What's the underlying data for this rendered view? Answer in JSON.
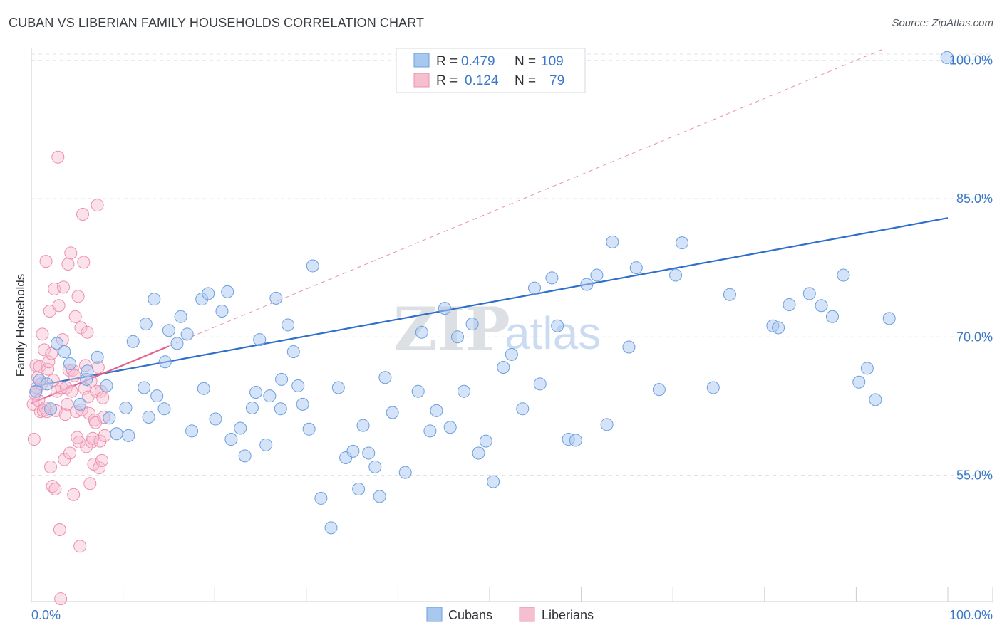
{
  "header": {
    "title": "CUBAN VS LIBERIAN FAMILY HOUSEHOLDS CORRELATION CHART",
    "source": "Source: ZipAtlas.com"
  },
  "watermark": {
    "part1": "ZIP",
    "part2": "atlas"
  },
  "stats": {
    "cubans": {
      "r_label": "R =",
      "r_value": "0.479",
      "n_label": "N =",
      "n_value": "109",
      "color": "#4a86d8"
    },
    "liberians": {
      "r_label": "R =",
      "r_value": "0.124",
      "n_label": "N =",
      "n_value": "79",
      "color": "#e8709a"
    }
  },
  "legend": {
    "cubans": "Cubans",
    "liberians": "Liberians"
  },
  "colors": {
    "cubans_fill": "#a9c8ef",
    "cubans_stroke": "#6a9fe0",
    "cubans_line": "#2f6fcc",
    "liberians_fill": "#f6bfd0",
    "liberians_stroke": "#ec8fae",
    "liberians_line": "#e0608e",
    "grid": "#dfe3e8",
    "tick_label": "#3a78c9"
  },
  "chart_data": {
    "type": "scatter",
    "title": "CUBAN VS LIBERIAN FAMILY HOUSEHOLDS CORRELATION CHART",
    "xlabel": "",
    "ylabel": "Family Households",
    "xlim": [
      0,
      100
    ],
    "ylim": [
      41.3,
      101.6
    ],
    "x_tick_labels": [
      "0.0%",
      "100.0%"
    ],
    "y_ticks": [
      55,
      70,
      85,
      100
    ],
    "y_tick_labels": [
      "55.0%",
      "70.0%",
      "85.0%",
      "100.0%"
    ],
    "grid": true,
    "legend_position": "bottom-center",
    "series": [
      {
        "name": "Cubans",
        "r": 0.479,
        "n": 109,
        "trend": {
          "x": [
            0,
            100
          ],
          "y": [
            64.6,
            82.9
          ]
        },
        "x": [
          0.5,
          0.9,
          1.7,
          2.1,
          2.8,
          3.6,
          4.2,
          5.3,
          6.0,
          6.1,
          7.2,
          8.2,
          8.5,
          9.3,
          10.3,
          10.6,
          11.1,
          12.3,
          12.5,
          12.8,
          13.4,
          13.7,
          14.5,
          14.6,
          15.0,
          15.9,
          16.3,
          17.0,
          17.5,
          18.6,
          18.8,
          19.3,
          20.1,
          20.8,
          21.4,
          21.8,
          22.8,
          23.3,
          24.1,
          24.5,
          24.9,
          25.6,
          26.0,
          26.7,
          27.2,
          27.3,
          28.0,
          28.6,
          29.1,
          29.6,
          30.3,
          30.7,
          31.6,
          32.7,
          33.5,
          34.3,
          35.1,
          35.7,
          36.2,
          36.8,
          37.5,
          38.0,
          38.6,
          39.4,
          40.8,
          42.2,
          42.6,
          43.5,
          44.2,
          45.1,
          45.7,
          46.5,
          47.2,
          48.1,
          48.8,
          49.6,
          50.4,
          51.5,
          52.4,
          53.6,
          54.9,
          55.5,
          56.8,
          57.4,
          58.6,
          59.4,
          60.6,
          61.7,
          62.8,
          63.4,
          65.2,
          66.0,
          68.5,
          70.3,
          71.0,
          74.4,
          76.2,
          80.9,
          81.5,
          82.7,
          84.9,
          86.2,
          87.4,
          88.6,
          90.3,
          91.2,
          92.1,
          93.6,
          99.9
        ],
        "y": [
          64.1,
          65.3,
          64.9,
          62.2,
          69.3,
          68.4,
          67.1,
          62.7,
          65.4,
          66.3,
          67.8,
          64.7,
          61.2,
          59.5,
          62.3,
          59.3,
          69.5,
          64.5,
          71.4,
          61.3,
          74.1,
          63.6,
          62.2,
          67.3,
          70.7,
          69.3,
          72.2,
          70.3,
          59.8,
          74.1,
          64.4,
          74.7,
          61.1,
          72.8,
          74.9,
          58.9,
          60.1,
          57.1,
          62.3,
          64.0,
          69.7,
          58.3,
          63.6,
          74.2,
          62.2,
          65.4,
          71.3,
          68.4,
          64.7,
          62.7,
          60.0,
          77.7,
          52.5,
          49.3,
          64.5,
          56.9,
          57.6,
          53.5,
          60.4,
          57.4,
          55.9,
          52.7,
          65.6,
          61.8,
          55.3,
          64.1,
          70.5,
          59.8,
          62.0,
          73.1,
          60.2,
          70.0,
          64.1,
          71.4,
          57.4,
          58.7,
          54.3,
          66.7,
          68.1,
          62.2,
          75.3,
          64.9,
          76.4,
          71.2,
          58.9,
          58.8,
          75.7,
          76.7,
          60.5,
          80.3,
          68.9,
          77.5,
          64.3,
          76.7,
          80.2,
          64.5,
          74.6,
          71.2,
          71.0,
          73.5,
          74.7,
          73.4,
          72.2,
          76.7,
          65.1,
          66.6,
          63.2,
          72.0,
          100.3
        ]
      },
      {
        "name": "Liberians",
        "r": 0.124,
        "n": 79,
        "trend": {
          "x": [
            0,
            15
          ],
          "y": [
            62.8,
            69.0
          ]
        },
        "x": [
          0.2,
          0.3,
          0.4,
          0.5,
          0.6,
          0.7,
          0.8,
          0.9,
          1.0,
          1.1,
          1.2,
          1.3,
          1.4,
          1.5,
          1.6,
          1.7,
          1.8,
          1.9,
          2.0,
          2.1,
          2.2,
          2.3,
          2.4,
          2.5,
          2.6,
          2.7,
          2.8,
          2.9,
          3.0,
          3.1,
          3.2,
          3.3,
          3.4,
          3.5,
          3.6,
          3.7,
          3.8,
          3.9,
          4.0,
          4.1,
          4.2,
          4.3,
          4.4,
          4.5,
          4.6,
          4.7,
          4.8,
          4.9,
          5.0,
          5.1,
          5.2,
          5.3,
          5.4,
          5.5,
          5.6,
          5.7,
          5.8,
          5.9,
          6.0,
          6.1,
          6.2,
          6.3,
          6.4,
          6.5,
          6.6,
          6.7,
          6.8,
          6.9,
          7.0,
          7.1,
          7.2,
          7.3,
          7.4,
          7.5,
          7.6,
          7.7,
          7.8,
          7.9,
          8.0
        ],
        "y": [
          62.7,
          58.9,
          63.8,
          66.9,
          64.5,
          65.6,
          63.1,
          66.8,
          61.9,
          64.9,
          70.3,
          62.0,
          68.6,
          62.3,
          78.2,
          61.9,
          66.5,
          67.3,
          72.8,
          55.9,
          68.2,
          53.8,
          65.3,
          75.2,
          53.5,
          62.0,
          64.1,
          89.5,
          73.4,
          49.1,
          41.6,
          64.5,
          69.7,
          75.4,
          56.7,
          61.6,
          64.5,
          62.7,
          77.9,
          66.4,
          57.4,
          79.1,
          64.1,
          66.4,
          52.9,
          65.8,
          72.2,
          61.9,
          59.1,
          74.4,
          58.6,
          47.3,
          71.0,
          62.1,
          83.3,
          78.1,
          64.4,
          66.9,
          58.1,
          70.5,
          63.5,
          61.7,
          54.1,
          65.2,
          58.6,
          59.0,
          56.2,
          61.0,
          60.7,
          64.1,
          84.3,
          66.7,
          55.8,
          58.7,
          64.1,
          56.6,
          63.4,
          61.3,
          59.3
        ]
      }
    ]
  }
}
